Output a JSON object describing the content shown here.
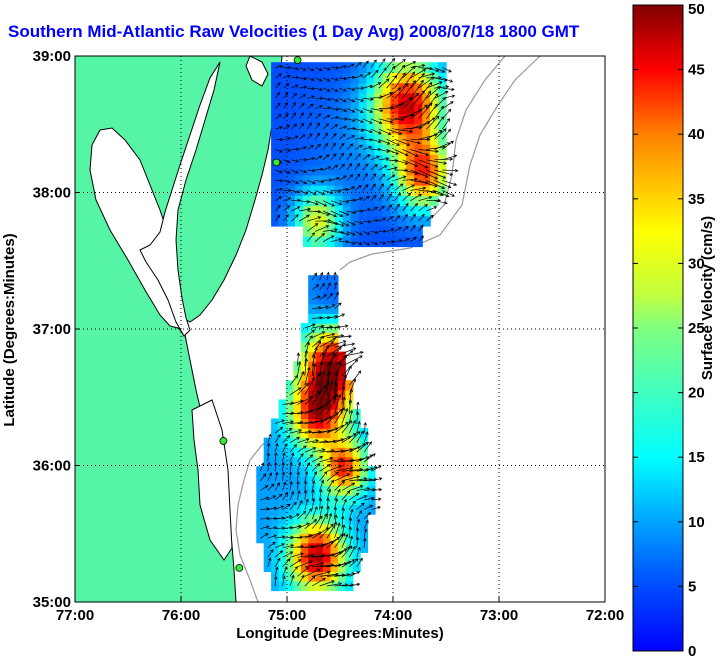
{
  "title": "Southern Mid-Atlantic Raw Velocities (1 Day Avg) 2008/07/18 1800 GMT",
  "colors": {
    "land": "#55f5a5",
    "coast": "#000000",
    "bathymetry": "#999999",
    "title": "#0000ff",
    "station": "#33ee33",
    "grid": "#000000"
  },
  "chart_data": {
    "type": "heatmap",
    "xlabel": "Longitude (Degrees:Minutes)",
    "ylabel": "Latitude (Degrees:Minutes)",
    "xlim": [
      -77,
      -72
    ],
    "ylim": [
      35,
      39
    ],
    "x_tick_values": [
      -77,
      -76,
      -75,
      -74,
      -73,
      -72
    ],
    "x_tick_labels": [
      "77:00",
      "76:00",
      "75:00",
      "74:00",
      "73:00",
      "72:00"
    ],
    "y_tick_values": [
      35,
      36,
      37,
      38,
      39
    ],
    "y_tick_labels": [
      "35:00",
      "36:00",
      "37:00",
      "38:00",
      "39:00"
    ],
    "grid": "dotted",
    "colorbar": {
      "label": "Surface Velocity (cm/s)",
      "range": [
        0,
        50
      ],
      "tick_values": [
        0,
        5,
        10,
        15,
        20,
        25,
        30,
        35,
        40,
        45,
        50
      ],
      "tick_labels": [
        "0",
        "5",
        "10",
        "15",
        "20",
        "25",
        "30",
        "35",
        "40",
        "45",
        "50"
      ],
      "colormap": "jet"
    },
    "stations": [
      {
        "lon": -74.9,
        "lat": 38.97
      },
      {
        "lon": -75.1,
        "lat": 38.22
      },
      {
        "lon": -75.6,
        "lat": 36.18
      },
      {
        "lon": -75.45,
        "lat": 35.25
      }
    ],
    "regions": [
      {
        "name": "northern",
        "lat_range": [
          37.6,
          38.92
        ],
        "lon_range": [
          -75.15,
          -73.55
        ],
        "step": [
          0.075,
          0.075
        ],
        "speed_centers": [
          {
            "lon": -73.9,
            "lat": 38.6,
            "speed": 46,
            "r": 0.32
          },
          {
            "lon": -73.75,
            "lat": 38.1,
            "speed": 40,
            "r": 0.25
          },
          {
            "lon": -74.75,
            "lat": 37.75,
            "speed": 30,
            "r": 0.22
          },
          {
            "lon": -74.4,
            "lat": 38.3,
            "speed": 12,
            "r": 0.45
          }
        ],
        "base_speed": 10,
        "flow_dir_deg": 15
      },
      {
        "name": "southern",
        "lat_range": [
          35.08,
          37.38
        ],
        "lon_range": [
          -75.5,
          -74.15
        ],
        "step": [
          0.07,
          0.07
        ],
        "speed_centers": [
          {
            "lon": -74.6,
            "lat": 36.7,
            "speed": 48,
            "r": 0.28
          },
          {
            "lon": -74.75,
            "lat": 36.35,
            "speed": 44,
            "r": 0.25
          },
          {
            "lon": -74.75,
            "lat": 35.3,
            "speed": 48,
            "r": 0.25
          },
          {
            "lon": -74.5,
            "lat": 35.95,
            "speed": 42,
            "r": 0.2
          },
          {
            "lon": -75.35,
            "lat": 36.85,
            "speed": 32,
            "r": 0.18
          },
          {
            "lon": -75.15,
            "lat": 36.0,
            "speed": 14,
            "r": 0.3
          },
          {
            "lon": -74.6,
            "lat": 37.15,
            "speed": 10,
            "r": 0.25
          }
        ],
        "base_speed": 14,
        "flow_dir_deg": 45
      }
    ]
  }
}
